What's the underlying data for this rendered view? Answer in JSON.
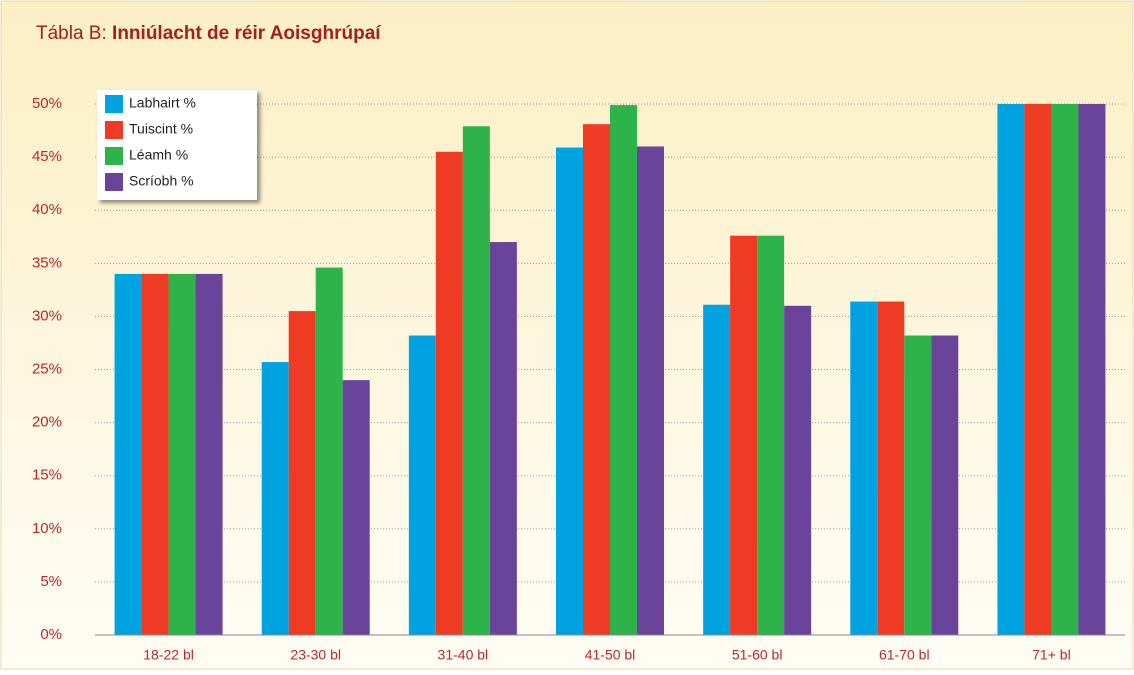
{
  "chart_data": {
    "type": "bar",
    "title_label": "Tábla B:",
    "title": "Inniúlacht de réir Aoisghrúpaí",
    "categories": [
      "18-22 bl",
      "23-30 bl",
      "31-40 bl",
      "41-50 bl",
      "51-60 bl",
      "61-70 bl",
      "71+ bl"
    ],
    "series": [
      {
        "name": "Labhairt %",
        "color": "#00a3e0",
        "values": [
          34,
          25.7,
          28.2,
          45.9,
          31.1,
          31.4,
          50
        ]
      },
      {
        "name": "Tuiscint %",
        "color": "#ee3b24",
        "values": [
          34,
          30.5,
          45.5,
          48.1,
          37.6,
          31.4,
          50
        ]
      },
      {
        "name": "Léamh %",
        "color": "#2db34a",
        "values": [
          34,
          34.6,
          47.9,
          49.9,
          37.6,
          28.2,
          50
        ]
      },
      {
        "name": "Scríobh %",
        "color": "#6a439a",
        "values": [
          34,
          24.0,
          37.0,
          46.0,
          31.0,
          28.2,
          50
        ]
      }
    ],
    "ylim": [
      0,
      50
    ],
    "yticks": [
      {
        "value": 0,
        "label": "0%"
      },
      {
        "value": 5,
        "label": "5%"
      },
      {
        "value": 10,
        "label": "10%"
      },
      {
        "value": 15,
        "label": "15%"
      },
      {
        "value": 20,
        "label": "20%"
      },
      {
        "value": 25,
        "label": "25%"
      },
      {
        "value": 30,
        "label": "30%"
      },
      {
        "value": 35,
        "label": "35%"
      },
      {
        "value": 40,
        "label": "40%"
      },
      {
        "value": 45,
        "label": "45%"
      },
      {
        "value": 50,
        "label": "50%"
      }
    ],
    "grid": true,
    "legend": "top-left"
  }
}
